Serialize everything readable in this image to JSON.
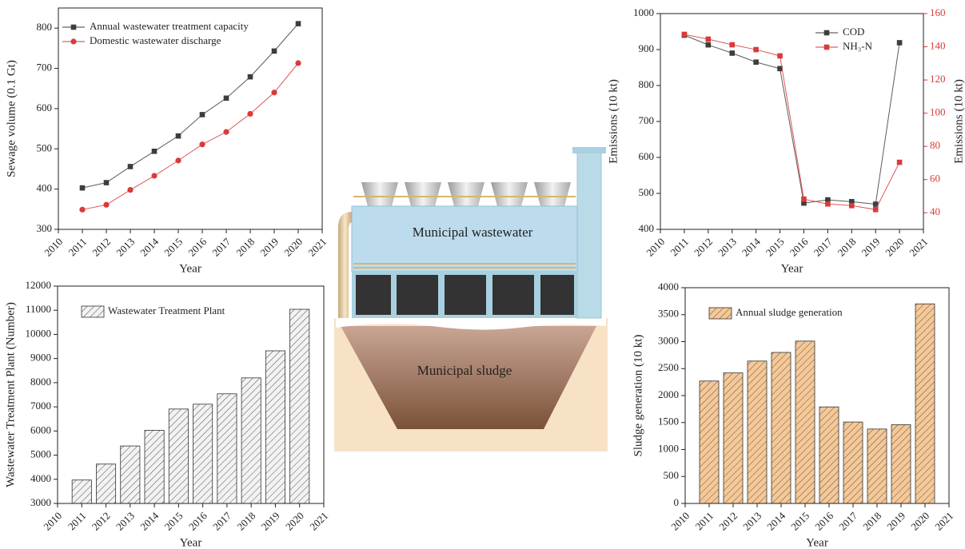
{
  "chart_data": [
    {
      "type": "line",
      "xlabel": "Year",
      "ylabel": "Sewage volume (0.1 Gt)",
      "x": [
        2011,
        2012,
        2013,
        2014,
        2015,
        2016,
        2017,
        2018,
        2019,
        2020
      ],
      "xlim": [
        2010,
        2021
      ],
      "xticks": [
        2010,
        2011,
        2012,
        2013,
        2014,
        2015,
        2016,
        2017,
        2018,
        2019,
        2020,
        2021
      ],
      "ylim": [
        300,
        850
      ],
      "yticks": [
        300,
        400,
        500,
        600,
        700,
        800
      ],
      "legend": "upper left",
      "series": [
        {
          "name": "Annual wastewater treatment capacity",
          "color": "#3d3d3d",
          "marker": "square",
          "values": [
            403,
            416,
            456,
            494,
            532,
            585,
            626,
            679,
            743,
            811
          ]
        },
        {
          "name": "Domestic wastewater discharge",
          "color": "#d93a3a",
          "marker": "circle",
          "values": [
            349,
            361,
            398,
            433,
            471,
            511,
            542,
            587,
            640,
            713
          ]
        }
      ]
    },
    {
      "type": "line",
      "xlabel": "Year",
      "ylabel": "Emissions (10 kt)",
      "y2label": "Emissions (10 kt)",
      "x": [
        2011,
        2012,
        2013,
        2014,
        2015,
        2016,
        2017,
        2018,
        2019,
        2020
      ],
      "xlim": [
        2010,
        2021
      ],
      "xticks": [
        2010,
        2011,
        2012,
        2013,
        2014,
        2015,
        2016,
        2017,
        2018,
        2019,
        2020,
        2021
      ],
      "ylim": [
        400,
        1000
      ],
      "yticks": [
        400,
        500,
        600,
        700,
        800,
        900,
        1000
      ],
      "y2lim": [
        30,
        160
      ],
      "y2ticks": [
        40,
        60,
        80,
        100,
        120,
        140,
        160
      ],
      "y2color": "#d93a3a",
      "legend": "upper right",
      "series": [
        {
          "name": "COD",
          "color": "#3d3d3d",
          "marker": "square",
          "values": [
            940,
            913,
            890,
            865,
            847,
            473,
            482,
            477,
            470,
            919
          ]
        },
        {
          "name": "NH₃-N",
          "color": "#d93a3a",
          "marker": "square",
          "axis": "y2",
          "values": [
            147.5,
            144.6,
            141.2,
            138.3,
            134.5,
            48.2,
            45.3,
            44.3,
            41.9,
            70.4
          ]
        }
      ]
    },
    {
      "type": "bar",
      "xlabel": "Year",
      "ylabel": "Wastewater Treatment Plant (Number)",
      "x": [
        2011,
        2012,
        2013,
        2014,
        2015,
        2016,
        2017,
        2018,
        2019,
        2020
      ],
      "xlim": [
        2010,
        2021
      ],
      "xticks": [
        2010,
        2011,
        2012,
        2013,
        2014,
        2015,
        2016,
        2017,
        2018,
        2019,
        2020,
        2021
      ],
      "ylim": [
        3000,
        12000
      ],
      "yticks": [
        3000,
        4000,
        5000,
        6000,
        7000,
        8000,
        9000,
        10000,
        11000,
        12000
      ],
      "legend": "upper left",
      "series": [
        {
          "name": "Wastewater Treatment Plant",
          "color": "#f2f2f2",
          "values": [
            3970,
            4630,
            5380,
            6030,
            6910,
            7110,
            7540,
            8200,
            9320,
            11040
          ]
        }
      ]
    },
    {
      "type": "bar",
      "xlabel": "Year",
      "ylabel": "Sludge generation (10 kt)",
      "x": [
        2011,
        2012,
        2013,
        2014,
        2015,
        2016,
        2017,
        2018,
        2019,
        2020
      ],
      "xlim": [
        2010,
        2021
      ],
      "xticks": [
        2010,
        2011,
        2012,
        2013,
        2014,
        2015,
        2016,
        2017,
        2018,
        2019,
        2020,
        2021
      ],
      "ylim": [
        0,
        4000
      ],
      "yticks": [
        0,
        500,
        1000,
        1500,
        2000,
        2500,
        3000,
        3500,
        4000
      ],
      "legend": "upper left",
      "series": [
        {
          "name": "Annual sludge generation",
          "color": "#f6c896",
          "values": [
            2270,
            2420,
            2640,
            2800,
            3010,
            1790,
            1510,
            1380,
            1460,
            3700
          ]
        }
      ]
    }
  ],
  "diagram": {
    "labels": [
      "Municipal wastewater",
      "Municipal sludge"
    ]
  }
}
